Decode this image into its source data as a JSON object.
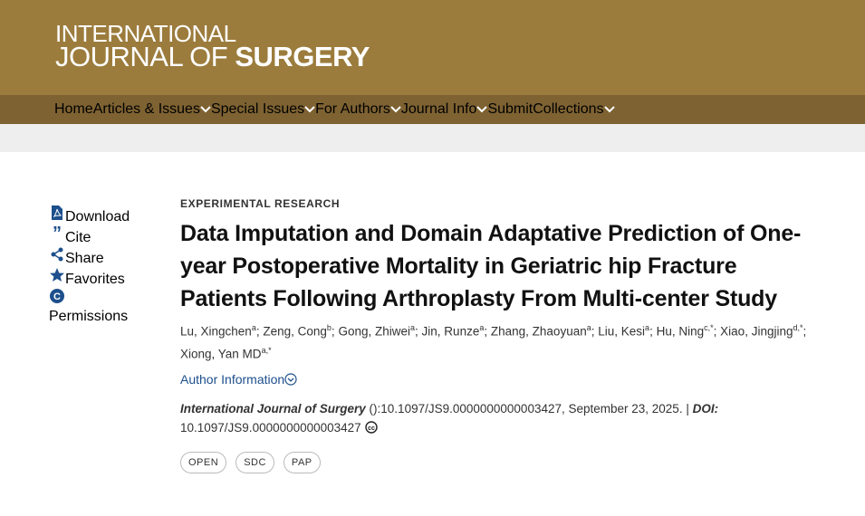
{
  "header": {
    "logo_line1": "INTERNATIONAL",
    "logo_line2a": "JOURNAL OF",
    "logo_line2b": "SURGERY"
  },
  "nav": [
    {
      "label": "Home",
      "dropdown": false
    },
    {
      "label": "Articles & Issues",
      "dropdown": true
    },
    {
      "label": "Special Issues",
      "dropdown": true
    },
    {
      "label": "For Authors",
      "dropdown": true
    },
    {
      "label": "Journal Info",
      "dropdown": true
    },
    {
      "label": "Submit",
      "dropdown": false
    },
    {
      "label": "Collections",
      "dropdown": true
    }
  ],
  "sidebar": [
    {
      "label": "Download",
      "icon": "pdf"
    },
    {
      "label": "Cite",
      "icon": "quote"
    },
    {
      "label": "Share",
      "icon": "share"
    },
    {
      "label": "Favorites",
      "icon": "star"
    },
    {
      "label": "Permissions",
      "icon": "copyright"
    }
  ],
  "article": {
    "section": "EXPERIMENTAL RESEARCH",
    "title": "Data Imputation and Domain Adaptative Prediction of One-year Postoperative Mortality in Geriatric hip Fracture Patients Following Arthroplasty From Multi-center Study",
    "author_separator": ";",
    "authors": [
      {
        "name": "Lu, Xingchen",
        "sup": "a"
      },
      {
        "name": "Zeng, Cong",
        "sup": "b"
      },
      {
        "name": "Gong, Zhiwei",
        "sup": "a"
      },
      {
        "name": "Jin, Runze",
        "sup": "a"
      },
      {
        "name": "Zhang, Zhaoyuan",
        "sup": "a"
      },
      {
        "name": "Liu, Kesi",
        "sup": "a"
      },
      {
        "name": "Hu, Ning",
        "sup": "c,*"
      },
      {
        "name": "Xiao, Jingjing",
        "sup": "d,*"
      },
      {
        "name": "Xiong, Yan MD",
        "sup": "a,*"
      }
    ],
    "author_info": "Author Information",
    "citation": {
      "journal": "International Journal of Surgery",
      "rest": "():10.1097/JS9.0000000000003427, September 23, 2025.",
      "separator": "|",
      "doi_label": "DOI:",
      "doi": "10.1097/JS9.0000000000003427"
    },
    "badges": [
      "OPEN",
      "SDC",
      "PAP"
    ]
  }
}
